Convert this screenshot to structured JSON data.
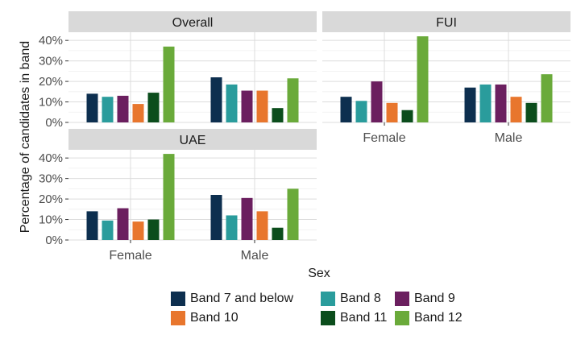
{
  "chart_data": {
    "type": "bar",
    "ylabel": "Percentage of candidates in band",
    "xlabel": "Sex",
    "categories": [
      "Female",
      "Male"
    ],
    "y_ticks": [
      "0%",
      "10%",
      "20%",
      "30%",
      "40%"
    ],
    "ylim": [
      0,
      0.44
    ],
    "grid": true,
    "legend_position": "bottom",
    "series_names": [
      "Band 7 and below",
      "Band 8",
      "Band 9",
      "Band 10",
      "Band 11",
      "Band 12"
    ],
    "colors": [
      "#0d2f4f",
      "#2a9c9c",
      "#6b1f5f",
      "#e8762d",
      "#0b4d1c",
      "#6aaa3a"
    ],
    "panels": [
      {
        "title": "Overall",
        "series": [
          {
            "name": "Band 7 and below",
            "values": [
              0.14,
              0.22
            ]
          },
          {
            "name": "Band 8",
            "values": [
              0.125,
              0.185
            ]
          },
          {
            "name": "Band 9",
            "values": [
              0.13,
              0.155
            ]
          },
          {
            "name": "Band 10",
            "values": [
              0.09,
              0.155
            ]
          },
          {
            "name": "Band 11",
            "values": [
              0.145,
              0.07
            ]
          },
          {
            "name": "Band 12",
            "values": [
              0.37,
              0.215
            ]
          }
        ]
      },
      {
        "title": "FUI",
        "series": [
          {
            "name": "Band 7 and below",
            "values": [
              0.125,
              0.17
            ]
          },
          {
            "name": "Band 8",
            "values": [
              0.105,
              0.185
            ]
          },
          {
            "name": "Band 9",
            "values": [
              0.2,
              0.185
            ]
          },
          {
            "name": "Band 10",
            "values": [
              0.095,
              0.125
            ]
          },
          {
            "name": "Band 11",
            "values": [
              0.06,
              0.095
            ]
          },
          {
            "name": "Band 12",
            "values": [
              0.42,
              0.235
            ]
          }
        ]
      },
      {
        "title": "UAE",
        "series": [
          {
            "name": "Band 7 and below",
            "values": [
              0.14,
              0.22
            ]
          },
          {
            "name": "Band 8",
            "values": [
              0.095,
              0.12
            ]
          },
          {
            "name": "Band 9",
            "values": [
              0.155,
              0.205
            ]
          },
          {
            "name": "Band 10",
            "values": [
              0.09,
              0.14
            ]
          },
          {
            "name": "Band 11",
            "values": [
              0.1,
              0.06
            ]
          },
          {
            "name": "Band 12",
            "values": [
              0.42,
              0.25
            ]
          }
        ]
      }
    ]
  }
}
